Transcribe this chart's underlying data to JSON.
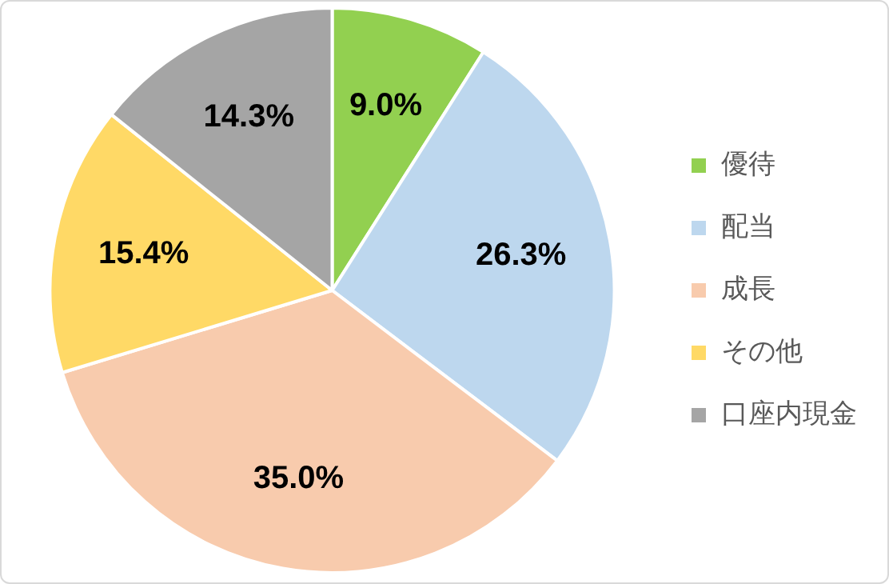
{
  "chart_data": {
    "type": "pie",
    "categories": [
      "優待",
      "配当",
      "成長",
      "その他",
      "口座内現金"
    ],
    "values": [
      9.0,
      26.3,
      35.0,
      15.4,
      14.3
    ],
    "colors": [
      "#92d050",
      "#bdd7ee",
      "#f8cbad",
      "#ffd966",
      "#a5a5a5"
    ],
    "value_labels": [
      "9.0%",
      "26.3%",
      "35.0%",
      "15.4%",
      "14.3%"
    ],
    "legend": "right"
  }
}
